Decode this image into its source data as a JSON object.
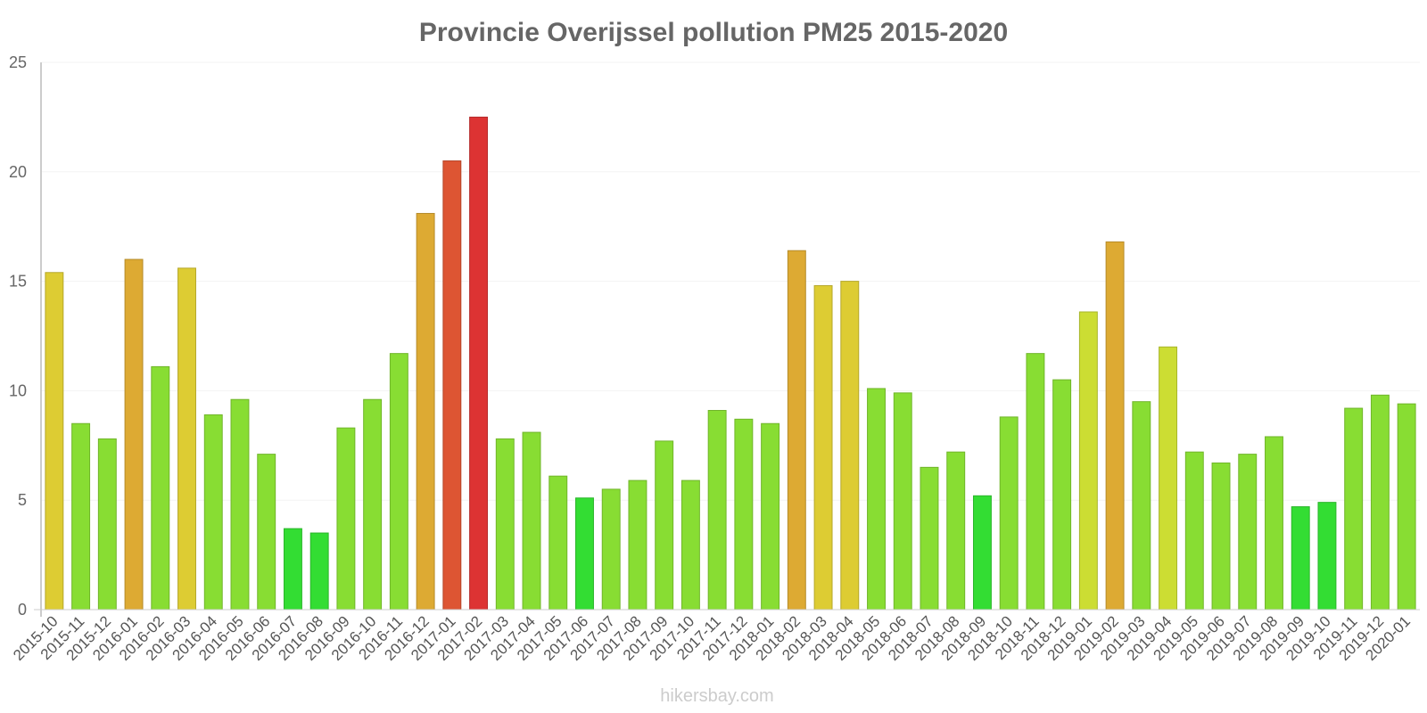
{
  "chart_data": {
    "type": "bar",
    "title": "Provincie Overijssel pollution PM25 2015-2020",
    "xlabel": "",
    "ylabel": "",
    "ylim": [
      0,
      25
    ],
    "yticks": [
      0,
      5,
      10,
      15,
      20,
      25
    ],
    "categories": [
      "2015-10",
      "2015-11",
      "2015-12",
      "2016-01",
      "2016-02",
      "2016-03",
      "2016-04",
      "2016-05",
      "2016-06",
      "2016-07",
      "2016-08",
      "2016-09",
      "2016-10",
      "2016-11",
      "2016-12",
      "2017-01",
      "2017-02",
      "2017-03",
      "2017-04",
      "2017-05",
      "2017-06",
      "2017-07",
      "2017-08",
      "2017-09",
      "2017-10",
      "2017-11",
      "2017-12",
      "2018-01",
      "2018-02",
      "2018-03",
      "2018-04",
      "2018-05",
      "2018-06",
      "2018-07",
      "2018-08",
      "2018-09",
      "2018-10",
      "2018-11",
      "2018-12",
      "2019-01",
      "2019-02",
      "2019-03",
      "2019-04",
      "2019-05",
      "2019-06",
      "2019-07",
      "2019-08",
      "2019-09",
      "2019-10",
      "2019-11",
      "2019-12",
      "2020-01"
    ],
    "values": [
      15.4,
      8.5,
      7.8,
      16,
      11.1,
      15.6,
      8.9,
      9.6,
      7.1,
      3.7,
      3.5,
      8.3,
      9.6,
      11.7,
      18.1,
      20.5,
      22.5,
      7.8,
      8.1,
      6.1,
      5.1,
      5.5,
      5.9,
      7.7,
      5.9,
      9.1,
      8.7,
      8.5,
      16.4,
      14.8,
      15,
      10.1,
      9.9,
      6.5,
      7.2,
      5.2,
      8.8,
      11.7,
      10.5,
      13.6,
      16.8,
      9.5,
      12,
      7.2,
      6.7,
      7.1,
      7.9,
      4.7,
      4.9,
      9.2,
      9.8,
      9.4
    ],
    "colors": {
      "green": "#33dd33",
      "light_green": "#88dd33",
      "yellow_green": "#ccdd33",
      "yellow": "#ddcc33",
      "orange": "#ddaa33",
      "red_orange": "#dd5533",
      "red": "#dd3333",
      "axis": "#cccccc",
      "text": "#666666"
    }
  },
  "credit": "hikersbay.com"
}
